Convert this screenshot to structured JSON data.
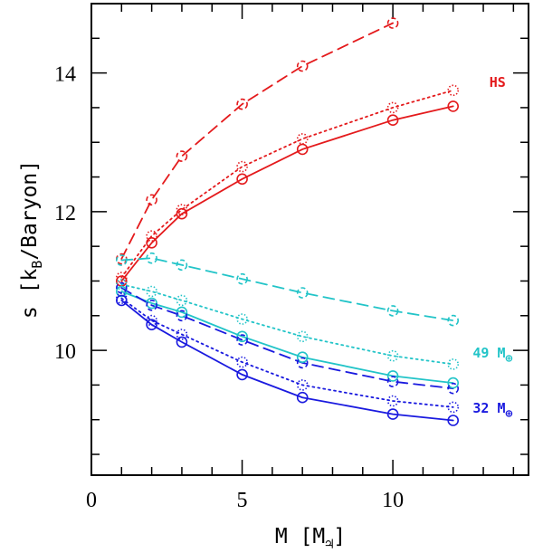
{
  "chart_data": {
    "type": "line",
    "xlabel": "M [M",
    "xlabel_unit_symbol": "♃",
    "xlabel_close": "]",
    "ylabel_prefix": "s [k",
    "ylabel_sub": "B",
    "ylabel_suffix": "/Baryon]",
    "xlim": [
      0,
      14.5
    ],
    "ylim": [
      8.2,
      15
    ],
    "x_ticks_major": [
      0,
      5,
      10
    ],
    "x_tick_labels": [
      "0",
      "5",
      "10"
    ],
    "y_ticks_major": [
      10,
      12,
      14
    ],
    "y_tick_labels": [
      "10",
      "12",
      "14"
    ],
    "grid": false,
    "colors": {
      "red": "#e41a1c",
      "cyan": "#22c4c8",
      "blue": "#1a1adf"
    },
    "annotations": [
      {
        "id": "hs",
        "text": "HS",
        "sub": "",
        "color": "red",
        "x": 13.2,
        "y": 13.8
      },
      {
        "id": "m49",
        "text": "49 M",
        "sub": "⊕",
        "color": "cyan",
        "x": 12.65,
        "y": 9.9
      },
      {
        "id": "m32",
        "text": "32 M",
        "sub": "⊕",
        "color": "blue",
        "x": 12.65,
        "y": 9.1
      }
    ],
    "series": [
      {
        "name": "HS solid",
        "color": "red",
        "style": "solid",
        "x": [
          1,
          2,
          3,
          5,
          7,
          10,
          12
        ],
        "y": [
          11.0,
          11.55,
          11.97,
          12.47,
          12.9,
          13.32,
          13.52
        ]
      },
      {
        "name": "HS dotted",
        "color": "red",
        "style": "dotted",
        "x": [
          1,
          2,
          3,
          5,
          7,
          10,
          12
        ],
        "y": [
          11.05,
          11.65,
          12.03,
          12.65,
          13.05,
          13.5,
          13.75
        ]
      },
      {
        "name": "HS dashed",
        "color": "red",
        "style": "dashed",
        "x": [
          1,
          2,
          3,
          5,
          7,
          10
        ],
        "y": [
          11.32,
          12.17,
          12.8,
          13.55,
          14.1,
          14.72
        ]
      },
      {
        "name": "49 M⊕ solid",
        "color": "cyan",
        "style": "solid",
        "x": [
          1,
          2,
          3,
          5,
          7,
          10,
          12
        ],
        "y": [
          10.85,
          10.68,
          10.55,
          10.2,
          9.9,
          9.63,
          9.53
        ]
      },
      {
        "name": "49 M⊕ dotted",
        "color": "cyan",
        "style": "dotted",
        "x": [
          1,
          2,
          3,
          5,
          7,
          10,
          12
        ],
        "y": [
          10.95,
          10.85,
          10.72,
          10.45,
          10.2,
          9.92,
          9.8
        ]
      },
      {
        "name": "49 M⊕ dashed",
        "color": "cyan",
        "style": "dashed",
        "x": [
          1,
          2,
          3,
          5,
          7,
          10,
          12
        ],
        "y": [
          11.3,
          11.33,
          11.23,
          11.03,
          10.83,
          10.57,
          10.43
        ]
      },
      {
        "name": "32 M⊕ solid",
        "color": "blue",
        "style": "solid",
        "x": [
          1,
          2,
          3,
          5,
          7,
          10,
          12
        ],
        "y": [
          10.72,
          10.37,
          10.12,
          9.65,
          9.32,
          9.08,
          8.99
        ]
      },
      {
        "name": "32 M⊕ dotted",
        "color": "blue",
        "style": "dotted",
        "x": [
          1,
          2,
          3,
          5,
          7,
          10,
          12
        ],
        "y": [
          10.75,
          10.43,
          10.23,
          9.83,
          9.5,
          9.27,
          9.18
        ]
      },
      {
        "name": "32 M⊕ dashed",
        "color": "blue",
        "style": "dashed",
        "x": [
          1,
          2,
          3,
          5,
          7,
          10,
          12
        ],
        "y": [
          10.9,
          10.65,
          10.5,
          10.15,
          9.82,
          9.55,
          9.45
        ]
      }
    ]
  }
}
